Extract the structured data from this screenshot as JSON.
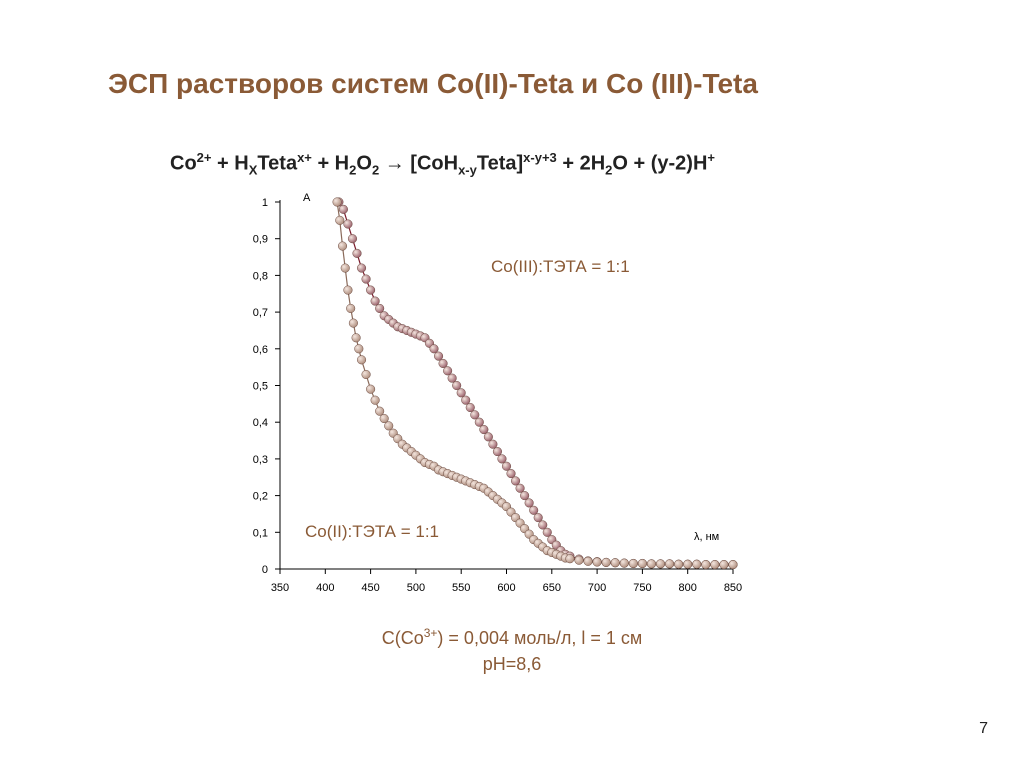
{
  "slide": {
    "title": "ЭСП растворов систем Co(II)-Teta и Co (III)-Teta",
    "page_number": "7"
  },
  "equation": {
    "p1": "Co",
    "p1_sup": "2+",
    "p2": " + H",
    "p2_sub": "X",
    "p3": "Teta",
    "p3_sup": "x+",
    "p4": " + H",
    "p4_sub": "2",
    "p5": "O",
    "p5_sub": "2",
    "p6": " → [CoH",
    "p6_sub": "x-y",
    "p7": "Teta]",
    "p7_sup": "x-y+3",
    "p8": " + 2H",
    "p8_sub": "2",
    "p9": "O + (y-2)H",
    "p9_sup": "+"
  },
  "caption": {
    "line1_a": "C(Co",
    "line1_sup": "3+",
    "line1_b": ") = 0,004 моль/л, l = 1 см",
    "line2": "pH=8,6"
  },
  "chart_data": {
    "type": "scatter",
    "xlabel": "λ, нм",
    "ylabel": "A",
    "xlim": [
      350,
      850
    ],
    "ylim": [
      0,
      1
    ],
    "x_ticks": [
      "350",
      "400",
      "450",
      "500",
      "550",
      "600",
      "650",
      "700",
      "750",
      "800",
      "850"
    ],
    "y_ticks": [
      "0",
      "0,1",
      "0,2",
      "0,3",
      "0,4",
      "0,5",
      "0,6",
      "0,7",
      "0,8",
      "0,9",
      "1"
    ],
    "grid": false,
    "series": [
      {
        "name": "Co(III):ТЭТА = 1:1",
        "color": "#9e6670",
        "x": [
          415,
          420,
          425,
          430,
          435,
          440,
          445,
          450,
          455,
          460,
          465,
          470,
          475,
          480,
          485,
          490,
          495,
          500,
          505,
          510,
          515,
          520,
          525,
          530,
          535,
          540,
          545,
          550,
          555,
          560,
          565,
          570,
          575,
          580,
          585,
          590,
          595,
          600,
          605,
          610,
          615,
          620,
          625,
          630,
          635,
          640,
          645,
          650,
          655,
          660,
          665,
          670,
          680,
          690,
          700,
          710,
          720,
          730,
          740,
          750,
          760,
          770,
          780,
          790,
          800,
          810,
          820,
          830,
          840,
          850
        ],
        "y": [
          1.0,
          0.98,
          0.94,
          0.9,
          0.86,
          0.82,
          0.79,
          0.76,
          0.73,
          0.71,
          0.69,
          0.68,
          0.67,
          0.66,
          0.655,
          0.65,
          0.645,
          0.64,
          0.635,
          0.63,
          0.615,
          0.6,
          0.58,
          0.56,
          0.54,
          0.52,
          0.5,
          0.48,
          0.46,
          0.44,
          0.42,
          0.4,
          0.38,
          0.36,
          0.34,
          0.32,
          0.3,
          0.28,
          0.26,
          0.24,
          0.22,
          0.2,
          0.18,
          0.16,
          0.14,
          0.12,
          0.1,
          0.08,
          0.065,
          0.05,
          0.04,
          0.035,
          0.027,
          0.022,
          0.02,
          0.018,
          0.017,
          0.016,
          0.015,
          0.015,
          0.014,
          0.014,
          0.014,
          0.013,
          0.013,
          0.013,
          0.012,
          0.012,
          0.012,
          0.012
        ]
      },
      {
        "name": "Co(II):ТЭТА = 1:1",
        "color": "#b29282",
        "x": [
          413,
          416,
          419,
          422,
          425,
          428,
          431,
          434,
          437,
          440,
          445,
          450,
          455,
          460,
          465,
          470,
          475,
          480,
          485,
          490,
          495,
          500,
          505,
          510,
          515,
          520,
          525,
          530,
          535,
          540,
          545,
          550,
          555,
          560,
          565,
          570,
          575,
          580,
          585,
          590,
          595,
          600,
          605,
          610,
          615,
          620,
          625,
          630,
          635,
          640,
          645,
          650,
          655,
          660,
          665,
          670,
          680,
          690,
          700,
          710,
          720,
          730,
          740,
          750,
          760,
          770,
          780,
          790,
          800,
          810,
          820,
          830,
          840,
          850
        ],
        "y": [
          1.0,
          0.95,
          0.88,
          0.82,
          0.76,
          0.71,
          0.67,
          0.63,
          0.6,
          0.57,
          0.53,
          0.49,
          0.46,
          0.43,
          0.41,
          0.39,
          0.37,
          0.355,
          0.34,
          0.33,
          0.32,
          0.31,
          0.3,
          0.29,
          0.285,
          0.28,
          0.27,
          0.265,
          0.26,
          0.255,
          0.25,
          0.245,
          0.24,
          0.235,
          0.23,
          0.225,
          0.22,
          0.21,
          0.2,
          0.19,
          0.18,
          0.17,
          0.155,
          0.14,
          0.125,
          0.11,
          0.095,
          0.08,
          0.07,
          0.06,
          0.05,
          0.045,
          0.04,
          0.035,
          0.03,
          0.028,
          0.024,
          0.021,
          0.019,
          0.018,
          0.017,
          0.016,
          0.015,
          0.015,
          0.014,
          0.014,
          0.014,
          0.013,
          0.013,
          0.013,
          0.012,
          0.012,
          0.012,
          0.012
        ]
      }
    ]
  }
}
